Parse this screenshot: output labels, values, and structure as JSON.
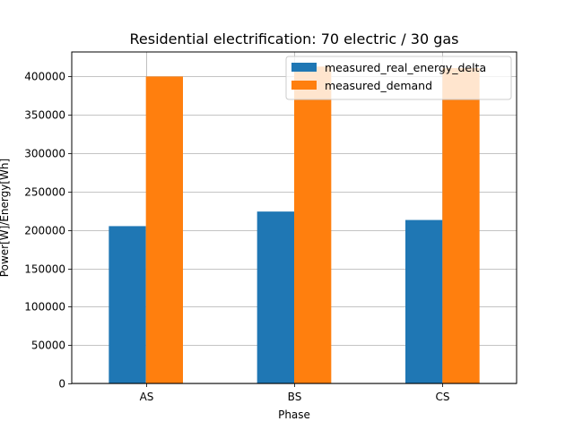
{
  "chart_data": {
    "type": "bar",
    "title": "Residential electrification: 70 electric / 30 gas",
    "xlabel": "Phase",
    "ylabel": "Power[W]/Energy[Wh]",
    "categories": [
      "AS",
      "BS",
      "CS"
    ],
    "series": [
      {
        "name": "measured_real_energy_delta",
        "values": [
          205000,
          224000,
          213000
        ],
        "color": "#1f77b4"
      },
      {
        "name": "measured_demand",
        "values": [
          400000,
          413000,
          411000
        ],
        "color": "#ff7f0e"
      }
    ],
    "ylim": [
      0,
      432000
    ],
    "yticks": [
      0,
      50000,
      100000,
      150000,
      200000,
      250000,
      300000,
      350000,
      400000
    ],
    "ytick_labels": [
      "0",
      "50000",
      "100000",
      "150000",
      "200000",
      "250000",
      "300000",
      "350000",
      "400000"
    ],
    "grid": true,
    "legend_position": "top-right"
  }
}
